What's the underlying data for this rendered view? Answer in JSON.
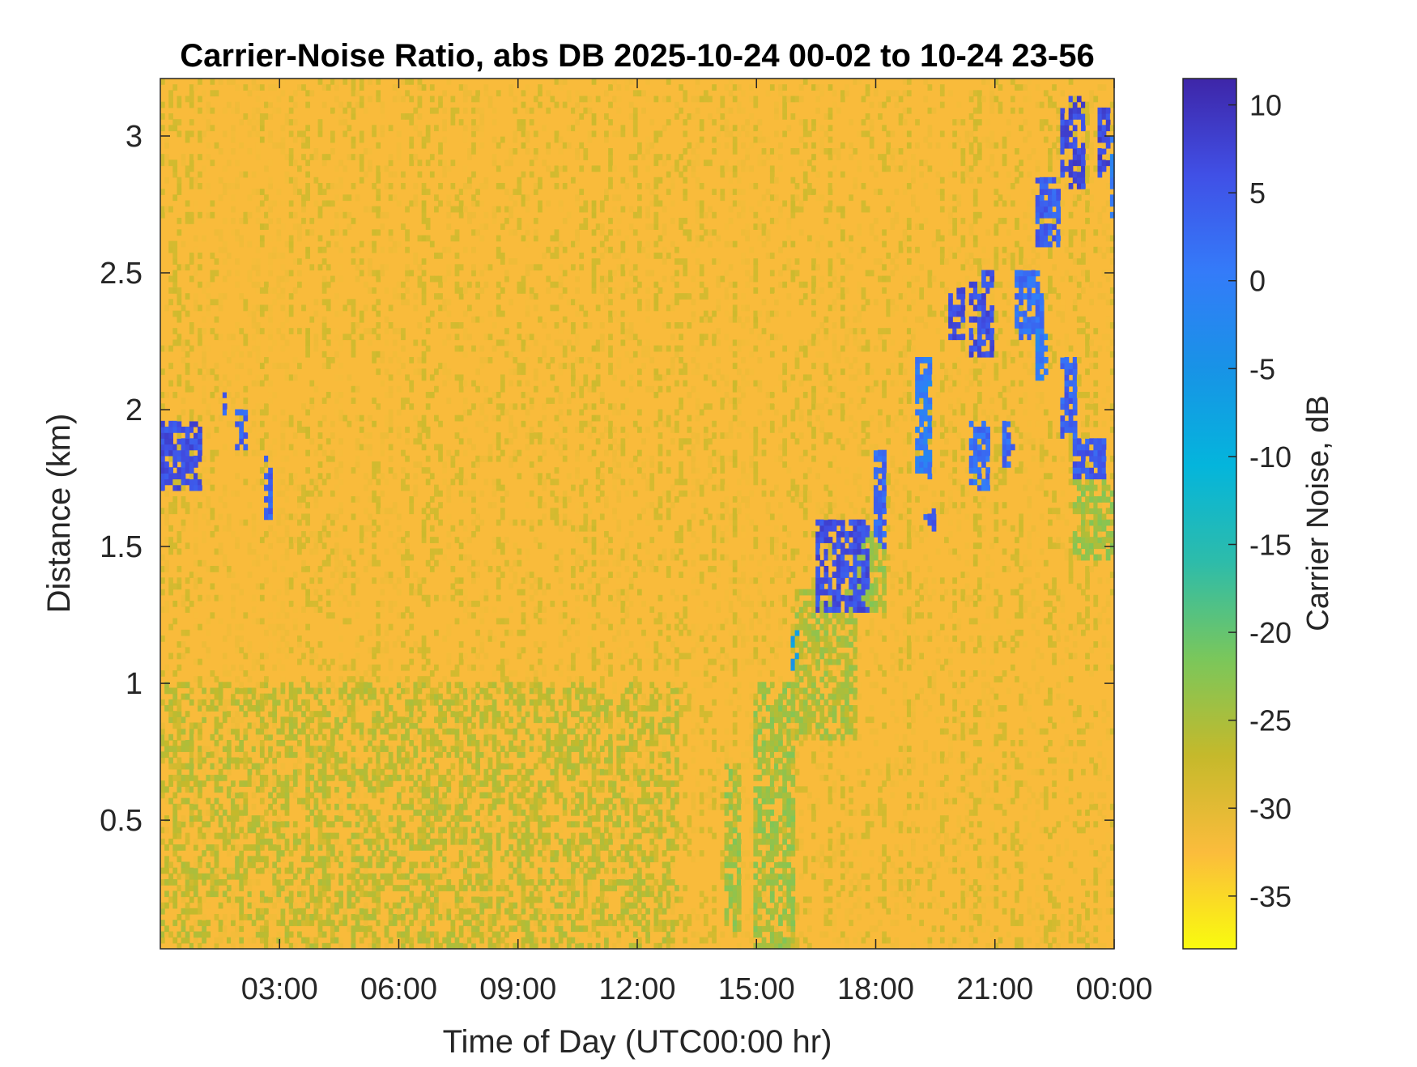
{
  "chart_data": {
    "type": "heatmap",
    "title": "Carrier-Noise Ratio, abs DB 2025-10-24 00-02 to 10-24 23-56",
    "xlabel": "Time of Day (UTC00:00 hr)",
    "ylabel": "Distance (km)",
    "x_range": [
      "2025-10-24 00:02",
      "2025-10-24 23:56"
    ],
    "xlim_hours": [
      0.0,
      24.0
    ],
    "x_ticks": [
      {
        "hour": 3,
        "label": "03:00"
      },
      {
        "hour": 6,
        "label": "06:00"
      },
      {
        "hour": 9,
        "label": "09:00"
      },
      {
        "hour": 12,
        "label": "12:00"
      },
      {
        "hour": 15,
        "label": "15:00"
      },
      {
        "hour": 18,
        "label": "18:00"
      },
      {
        "hour": 21,
        "label": "21:00"
      },
      {
        "hour": 24,
        "label": "00:00"
      }
    ],
    "ylim": [
      0.03,
      3.21
    ],
    "y_ticks": [
      {
        "value": 0.5,
        "label": "0.5"
      },
      {
        "value": 1,
        "label": "1"
      },
      {
        "value": 1.5,
        "label": "1.5"
      },
      {
        "value": 2,
        "label": "2"
      },
      {
        "value": 2.5,
        "label": "2.5"
      },
      {
        "value": 3,
        "label": "3"
      }
    ],
    "grid": false,
    "colorbar": {
      "label": "Carrier Noise, dB",
      "limits": [
        -38,
        11.5
      ],
      "ticks": [
        {
          "value": 10,
          "label": "10"
        },
        {
          "value": 5,
          "label": "5"
        },
        {
          "value": 0,
          "label": "0"
        },
        {
          "value": -5,
          "label": "-5"
        },
        {
          "value": -10,
          "label": "-10"
        },
        {
          "value": -15,
          "label": "-15"
        },
        {
          "value": -20,
          "label": "-20"
        },
        {
          "value": -25,
          "label": "-25"
        },
        {
          "value": -30,
          "label": "-30"
        },
        {
          "value": -35,
          "label": "-35"
        }
      ],
      "colormap": "parula",
      "colors": [
        "#f9fb0e",
        "#fbbc3c",
        "#c5b92b",
        "#7ac75b",
        "#2dbcaa",
        "#04b5dc",
        "#1893e6",
        "#347bf9",
        "#4050e6",
        "#3e26a8"
      ]
    },
    "background_level_db": -30,
    "near_ground_level_db": -26,
    "signal_regions": [
      {
        "t0": 0.0,
        "t1": 1.0,
        "d0": 1.7,
        "d1": 1.95,
        "db": 6
      },
      {
        "t0": 1.6,
        "t1": 1.7,
        "d0": 1.98,
        "d1": 2.08,
        "db": 4
      },
      {
        "t0": 1.9,
        "t1": 2.2,
        "d0": 1.85,
        "d1": 2.0,
        "db": 4
      },
      {
        "t0": 2.6,
        "t1": 2.8,
        "d0": 1.6,
        "d1": 1.83,
        "db": 4
      },
      {
        "t0": 15.85,
        "t1": 16.05,
        "d0": 1.05,
        "d1": 1.2,
        "db": -6
      },
      {
        "t0": 16.5,
        "t1": 17.8,
        "d0": 1.25,
        "d1": 1.6,
        "db": 6
      },
      {
        "t0": 17.9,
        "t1": 18.3,
        "d0": 1.5,
        "d1": 1.85,
        "db": 3
      },
      {
        "t0": 19.0,
        "t1": 19.4,
        "d0": 1.75,
        "d1": 2.2,
        "db": 0
      },
      {
        "t0": 19.2,
        "t1": 19.5,
        "d0": 1.55,
        "d1": 1.65,
        "db": 5
      },
      {
        "t0": 19.8,
        "t1": 20.2,
        "d0": 2.25,
        "d1": 2.45,
        "db": 6
      },
      {
        "t0": 20.3,
        "t1": 20.9,
        "d0": 1.7,
        "d1": 1.95,
        "db": 2
      },
      {
        "t0": 20.4,
        "t1": 21.0,
        "d0": 2.2,
        "d1": 2.5,
        "db": 6
      },
      {
        "t0": 21.2,
        "t1": 21.5,
        "d0": 1.8,
        "d1": 1.95,
        "db": 3
      },
      {
        "t0": 21.5,
        "t1": 22.2,
        "d0": 2.25,
        "d1": 2.5,
        "db": 2
      },
      {
        "t0": 22.0,
        "t1": 22.6,
        "d0": 2.6,
        "d1": 2.85,
        "db": 4
      },
      {
        "t0": 22.0,
        "t1": 22.3,
        "d0": 2.1,
        "d1": 2.3,
        "db": 0
      },
      {
        "t0": 22.6,
        "t1": 23.1,
        "d0": 1.9,
        "d1": 2.2,
        "db": 4
      },
      {
        "t0": 23.0,
        "t1": 23.8,
        "d0": 1.75,
        "d1": 1.9,
        "db": 5
      },
      {
        "t0": 22.6,
        "t1": 22.8,
        "d0": 2.85,
        "d1": 3.1,
        "db": 6
      },
      {
        "t0": 22.9,
        "t1": 23.3,
        "d0": 2.8,
        "d1": 3.15,
        "db": 7
      },
      {
        "t0": 23.6,
        "t1": 23.9,
        "d0": 2.85,
        "d1": 3.1,
        "db": 7
      },
      {
        "t0": 23.9,
        "t1": 24.0,
        "d0": 2.7,
        "d1": 3.0,
        "db": 0
      }
    ],
    "transition_regions": [
      {
        "t0": 14.2,
        "t1": 14.6,
        "d0": 0.1,
        "d1": 0.7,
        "db": -24
      },
      {
        "t0": 14.9,
        "t1": 16.0,
        "d0": 0.03,
        "d1": 1.0,
        "db": -24
      },
      {
        "t0": 16.0,
        "t1": 17.5,
        "d0": 0.8,
        "d1": 1.35,
        "db": -25
      },
      {
        "t0": 17.5,
        "t1": 18.3,
        "d0": 1.25,
        "d1": 1.55,
        "db": -24
      },
      {
        "t0": 23.0,
        "t1": 24.0,
        "d0": 1.45,
        "d1": 1.75,
        "db": -24
      }
    ]
  }
}
